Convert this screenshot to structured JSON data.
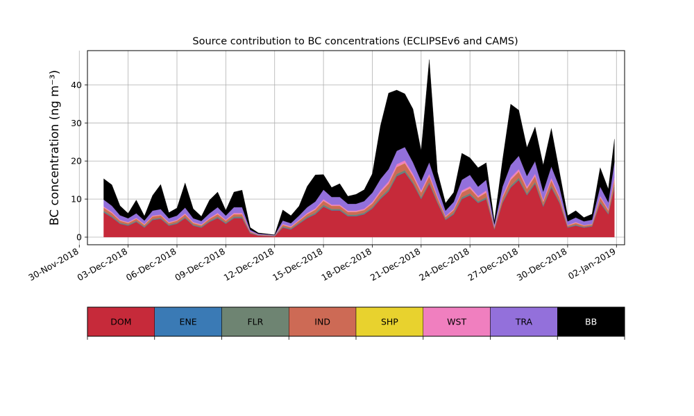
{
  "chart_data": {
    "type": "area",
    "stacked": true,
    "title": "Source contribution to BC concentrations (ECLIPSEv6 and CAMS)",
    "ylabel": "BC concentration (ng m⁻³)",
    "xlabel": "",
    "ylim": [
      -2,
      49
    ],
    "xlim": [
      "2018-11-30T12:00",
      "2019-01-02T12:00"
    ],
    "yticks": [
      0,
      10,
      20,
      30,
      40
    ],
    "xticks": [
      "30-Nov-2018",
      "03-Dec-2018",
      "06-Dec-2018",
      "09-Dec-2018",
      "12-Dec-2018",
      "15-Dec-2018",
      "18-Dec-2018",
      "21-Dec-2018",
      "24-Dec-2018",
      "27-Dec-2018",
      "30-Dec-2018",
      "02-Jan-2019"
    ],
    "xtick_dates": [
      "2018-11-30",
      "2018-12-03",
      "2018-12-06",
      "2018-12-09",
      "2018-12-12",
      "2018-12-15",
      "2018-12-18",
      "2018-12-21",
      "2018-12-24",
      "2018-12-27",
      "2018-12-30",
      "2019-01-02"
    ],
    "grid": true,
    "legend_position": "colorbar below plot",
    "x": [
      "2018-12-01T12:00",
      "2018-12-02T00:00",
      "2018-12-02T12:00",
      "2018-12-03T00:00",
      "2018-12-03T12:00",
      "2018-12-04T00:00",
      "2018-12-04T12:00",
      "2018-12-05T00:00",
      "2018-12-05T12:00",
      "2018-12-06T00:00",
      "2018-12-06T12:00",
      "2018-12-07T00:00",
      "2018-12-07T12:00",
      "2018-12-08T00:00",
      "2018-12-08T12:00",
      "2018-12-09T00:00",
      "2018-12-09T12:00",
      "2018-12-10T00:00",
      "2018-12-10T12:00",
      "2018-12-11T00:00",
      "2018-12-11T12:00",
      "2018-12-12T00:00",
      "2018-12-12T12:00",
      "2018-12-13T00:00",
      "2018-12-13T12:00",
      "2018-12-14T00:00",
      "2018-12-14T12:00",
      "2018-12-15T00:00",
      "2018-12-15T12:00",
      "2018-12-16T00:00",
      "2018-12-16T12:00",
      "2018-12-17T00:00",
      "2018-12-17T12:00",
      "2018-12-18T00:00",
      "2018-12-18T12:00",
      "2018-12-19T00:00",
      "2018-12-19T12:00",
      "2018-12-20T00:00",
      "2018-12-20T12:00",
      "2018-12-21T00:00",
      "2018-12-21T12:00",
      "2018-12-22T00:00",
      "2018-12-22T12:00",
      "2018-12-23T00:00",
      "2018-12-23T12:00",
      "2018-12-24T00:00",
      "2018-12-24T12:00",
      "2018-12-25T00:00",
      "2018-12-25T12:00",
      "2018-12-26T00:00",
      "2018-12-26T12:00",
      "2018-12-27T00:00",
      "2018-12-27T12:00",
      "2018-12-28T00:00",
      "2018-12-28T12:00",
      "2018-12-29T00:00",
      "2018-12-29T12:00",
      "2018-12-30T00:00",
      "2018-12-30T12:00",
      "2018-12-31T00:00",
      "2018-12-31T12:00",
      "2019-01-01T00:00",
      "2019-01-01T12:00",
      "2019-01-01T21:00"
    ],
    "series": [
      {
        "name": "DOM",
        "color": "#c62a3a",
        "values": [
          6.5,
          5.2,
          3.5,
          3.0,
          4.0,
          2.5,
          4.5,
          4.8,
          3.0,
          3.5,
          5.0,
          3.0,
          2.5,
          4.0,
          5.0,
          3.5,
          5.0,
          5.0,
          1.0,
          0.4,
          0.3,
          0.2,
          2.5,
          2.0,
          3.5,
          5.0,
          6.0,
          8.0,
          7.0,
          7.0,
          5.5,
          5.5,
          6.0,
          7.5,
          10.0,
          12.0,
          16.0,
          17.0,
          14.0,
          10.0,
          14.0,
          9.0,
          4.5,
          6.0,
          10.0,
          11.0,
          9.0,
          10.0,
          2.0,
          9.0,
          13.0,
          15.0,
          11.0,
          14.0,
          8.0,
          13.0,
          9.0,
          2.5,
          3.0,
          2.5,
          2.8,
          9.0,
          6.0,
          13.0
        ]
      },
      {
        "name": "ENE",
        "color": "#3a7ab5",
        "values": [
          0.1,
          0.1,
          0.1,
          0.1,
          0.1,
          0.1,
          0.1,
          0.1,
          0.1,
          0.1,
          0.1,
          0.1,
          0.1,
          0.1,
          0.1,
          0.1,
          0.1,
          0.1,
          0.1,
          0.05,
          0.05,
          0.05,
          0.1,
          0.1,
          0.1,
          0.1,
          0.1,
          0.1,
          0.1,
          0.1,
          0.1,
          0.1,
          0.1,
          0.1,
          0.1,
          0.1,
          0.1,
          0.1,
          0.1,
          0.1,
          0.1,
          0.1,
          0.1,
          0.1,
          0.1,
          0.1,
          0.1,
          0.1,
          0.1,
          0.1,
          0.1,
          0.1,
          0.1,
          0.1,
          0.1,
          0.1,
          0.1,
          0.1,
          0.1,
          0.1,
          0.1,
          0.1,
          0.1,
          0.1
        ]
      },
      {
        "name": "FLR",
        "color": "#6e8472",
        "values": [
          0.3,
          0.3,
          0.2,
          0.2,
          0.2,
          0.2,
          0.2,
          0.2,
          0.2,
          0.2,
          0.2,
          0.2,
          0.2,
          0.2,
          0.3,
          0.2,
          0.3,
          0.3,
          0.1,
          0.05,
          0.05,
          0.05,
          0.2,
          0.2,
          0.2,
          0.3,
          0.3,
          0.4,
          0.3,
          0.3,
          0.3,
          0.3,
          0.3,
          0.3,
          0.4,
          0.5,
          0.5,
          0.5,
          0.4,
          0.4,
          0.4,
          0.3,
          0.2,
          0.3,
          0.4,
          0.4,
          0.3,
          0.4,
          0.1,
          0.3,
          0.4,
          0.5,
          0.4,
          0.4,
          0.3,
          0.4,
          0.3,
          0.1,
          0.2,
          0.1,
          0.1,
          0.3,
          0.2,
          0.5
        ]
      },
      {
        "name": "IND",
        "color": "#cd6a55",
        "values": [
          0.8,
          0.7,
          0.5,
          0.4,
          0.5,
          0.4,
          0.6,
          0.6,
          0.4,
          0.5,
          0.6,
          0.4,
          0.3,
          0.5,
          0.6,
          0.5,
          0.6,
          0.6,
          0.2,
          0.1,
          0.1,
          0.05,
          0.4,
          0.3,
          0.5,
          0.6,
          0.8,
          1.0,
          0.8,
          0.8,
          0.7,
          0.7,
          0.7,
          0.9,
          1.2,
          1.4,
          1.8,
          1.8,
          1.5,
          1.2,
          1.5,
          1.0,
          0.5,
          0.7,
          1.2,
          1.3,
          1.0,
          1.2,
          0.3,
          1.0,
          1.5,
          1.6,
          1.2,
          1.5,
          0.9,
          1.4,
          1.0,
          0.3,
          0.4,
          0.3,
          0.3,
          1.0,
          0.7,
          1.5
        ]
      },
      {
        "name": "SHP",
        "color": "#e8d22e",
        "values": [
          0.05,
          0.05,
          0.05,
          0.05,
          0.05,
          0.05,
          0.05,
          0.05,
          0.05,
          0.05,
          0.05,
          0.05,
          0.05,
          0.05,
          0.05,
          0.05,
          0.05,
          0.05,
          0.02,
          0.02,
          0.02,
          0.02,
          0.05,
          0.05,
          0.05,
          0.05,
          0.05,
          0.05,
          0.05,
          0.05,
          0.05,
          0.05,
          0.05,
          0.05,
          0.05,
          0.05,
          0.05,
          0.05,
          0.05,
          0.05,
          0.05,
          0.05,
          0.05,
          0.05,
          0.05,
          0.05,
          0.05,
          0.05,
          0.05,
          0.05,
          0.05,
          0.05,
          0.05,
          0.05,
          0.05,
          0.05,
          0.05,
          0.05,
          0.05,
          0.05,
          0.05,
          0.05,
          0.05,
          0.05
        ]
      },
      {
        "name": "WST",
        "color": "#f07fbf",
        "values": [
          0.3,
          0.3,
          0.2,
          0.2,
          0.2,
          0.2,
          0.2,
          0.2,
          0.2,
          0.2,
          0.3,
          0.2,
          0.2,
          0.2,
          0.3,
          0.2,
          0.3,
          0.3,
          0.1,
          0.05,
          0.05,
          0.05,
          0.2,
          0.2,
          0.2,
          0.3,
          0.3,
          0.4,
          0.3,
          0.3,
          0.3,
          0.3,
          0.3,
          0.4,
          0.5,
          0.6,
          0.7,
          0.7,
          0.6,
          0.5,
          0.6,
          0.4,
          0.2,
          0.3,
          0.5,
          0.5,
          0.4,
          0.5,
          0.1,
          0.4,
          0.6,
          0.6,
          0.5,
          0.6,
          0.4,
          0.6,
          0.4,
          0.1,
          0.2,
          0.1,
          0.1,
          0.4,
          0.3,
          0.6
        ]
      },
      {
        "name": "TRA",
        "color": "#9370db",
        "values": [
          1.8,
          1.6,
          1.2,
          1.0,
          1.2,
          0.9,
          1.3,
          1.4,
          1.0,
          1.1,
          1.5,
          1.0,
          0.9,
          1.2,
          1.5,
          1.1,
          1.5,
          1.5,
          0.4,
          0.2,
          0.15,
          0.1,
          0.9,
          0.8,
          1.1,
          1.5,
          1.8,
          2.5,
          2.0,
          2.0,
          1.8,
          1.8,
          2.0,
          2.4,
          3.0,
          3.2,
          3.5,
          3.5,
          3.0,
          2.5,
          3.0,
          2.3,
          1.4,
          1.8,
          2.8,
          3.0,
          2.4,
          2.8,
          0.7,
          2.4,
          3.3,
          3.5,
          2.8,
          3.3,
          2.2,
          3.0,
          2.3,
          1.0,
          1.2,
          1.0,
          1.1,
          2.4,
          1.8,
          4.0
        ]
      },
      {
        "name": "BB",
        "color": "#000000",
        "values": [
          5.5,
          5.5,
          2.5,
          1.3,
          3.5,
          1.2,
          4.0,
          6.5,
          1.5,
          2.0,
          6.5,
          2.5,
          1.2,
          3.5,
          4.0,
          1.4,
          4.0,
          4.5,
          0.6,
          0.25,
          0.15,
          0.1,
          2.8,
          2.0,
          2.5,
          5.5,
          7.0,
          4.0,
          2.5,
          3.5,
          2.0,
          2.5,
          3.0,
          5.0,
          14.0,
          20.0,
          16.0,
          14.0,
          14.0,
          8.0,
          27.0,
          4.0,
          2.0,
          2.5,
          7.0,
          4.5,
          5.0,
          4.5,
          0.8,
          7.0,
          16.0,
          12.0,
          7.5,
          9.0,
          7.0,
          10.0,
          4.0,
          1.5,
          1.8,
          1.0,
          1.5,
          5.0,
          3.5,
          6.0
        ]
      }
    ]
  }
}
